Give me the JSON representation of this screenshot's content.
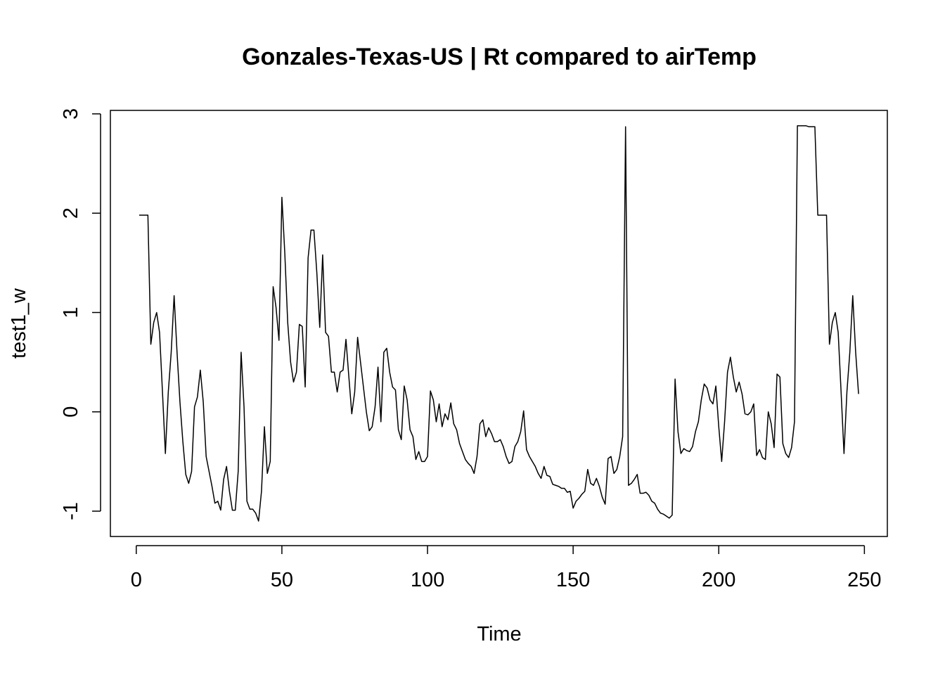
{
  "chart_data": {
    "type": "line",
    "title": "Gonzales-Texas-US | Rt compared to airTemp",
    "x_label": "Time",
    "y_label": "test1_w",
    "xlim": [
      -8.88,
      257.88
    ],
    "ylim": [
      -1.255,
      3.035
    ],
    "xticks": [
      0,
      50,
      100,
      150,
      200,
      250
    ],
    "yticks": [
      -1,
      0,
      1,
      2,
      3
    ],
    "series": [
      {
        "name": "test1_w",
        "color": "#000000",
        "x": [
          1,
          2,
          3,
          4,
          5,
          6,
          7,
          8,
          9,
          10,
          11,
          12,
          13,
          14,
          15,
          16,
          17,
          18,
          19,
          20,
          21,
          22,
          23,
          24,
          25,
          26,
          27,
          28,
          29,
          30,
          31,
          32,
          33,
          34,
          35,
          36,
          37,
          38,
          39,
          40,
          41,
          42,
          43,
          44,
          45,
          46,
          47,
          48,
          49,
          50,
          51,
          52,
          53,
          54,
          55,
          56,
          57,
          58,
          59,
          60,
          61,
          62,
          63,
          64,
          65,
          66,
          67,
          68,
          69,
          70,
          71,
          72,
          73,
          74,
          75,
          76,
          77,
          78,
          79,
          80,
          81,
          82,
          83,
          84,
          85,
          86,
          87,
          88,
          89,
          90,
          91,
          92,
          93,
          94,
          95,
          96,
          97,
          98,
          99,
          100,
          101,
          102,
          103,
          104,
          105,
          106,
          107,
          108,
          109,
          110,
          111,
          112,
          113,
          114,
          115,
          116,
          117,
          118,
          119,
          120,
          121,
          122,
          123,
          124,
          125,
          126,
          127,
          128,
          129,
          130,
          131,
          132,
          133,
          134,
          135,
          136,
          137,
          138,
          139,
          140,
          141,
          142,
          143,
          144,
          145,
          146,
          147,
          148,
          149,
          150,
          151,
          152,
          153,
          154,
          155,
          156,
          157,
          158,
          159,
          160,
          161,
          162,
          163,
          164,
          165,
          166,
          167,
          168,
          169,
          170,
          171,
          172,
          173,
          174,
          175,
          176,
          177,
          178,
          179,
          180,
          181,
          182,
          183,
          184,
          185,
          186,
          187,
          188,
          189,
          190,
          191,
          192,
          193,
          194,
          195,
          196,
          197,
          198,
          199,
          200,
          201,
          202,
          203,
          204,
          205,
          206,
          207,
          208,
          209,
          210,
          211,
          212,
          213,
          214,
          215,
          216,
          217,
          218,
          219,
          220,
          221,
          222,
          223,
          224,
          225,
          226,
          227,
          228,
          229,
          230,
          231,
          232,
          233,
          234,
          235,
          236,
          237,
          238,
          239,
          240,
          241,
          242,
          243,
          244,
          245,
          246,
          247,
          248
        ],
        "values": [
          1.98,
          1.98,
          1.98,
          1.98,
          0.68,
          0.9,
          1.0,
          0.8,
          0.2,
          -0.42,
          0.2,
          0.6,
          1.17,
          0.6,
          0.1,
          -0.3,
          -0.63,
          -0.72,
          -0.6,
          0.05,
          0.15,
          0.42,
          0.1,
          -0.45,
          -0.6,
          -0.75,
          -0.92,
          -0.9,
          -0.99,
          -0.68,
          -0.55,
          -0.8,
          -0.99,
          -0.99,
          -0.6,
          0.6,
          0.05,
          -0.9,
          -0.98,
          -0.98,
          -1.02,
          -1.1,
          -0.8,
          -0.15,
          -0.62,
          -0.5,
          1.26,
          1.05,
          0.72,
          2.16,
          1.6,
          0.9,
          0.5,
          0.3,
          0.4,
          0.88,
          0.86,
          0.25,
          1.55,
          1.83,
          1.83,
          1.4,
          0.85,
          1.58,
          0.8,
          0.76,
          0.4,
          0.4,
          0.2,
          0.4,
          0.42,
          0.73,
          0.35,
          -0.02,
          0.2,
          0.75,
          0.5,
          0.25,
          0.0,
          -0.19,
          -0.15,
          0.05,
          0.45,
          -0.1,
          0.6,
          0.64,
          0.4,
          0.25,
          0.22,
          -0.18,
          -0.28,
          0.26,
          0.12,
          -0.18,
          -0.25,
          -0.48,
          -0.4,
          -0.5,
          -0.5,
          -0.45,
          0.21,
          0.12,
          -0.1,
          0.08,
          -0.15,
          -0.02,
          -0.08,
          0.09,
          -0.12,
          -0.18,
          -0.32,
          -0.4,
          -0.48,
          -0.52,
          -0.55,
          -0.62,
          -0.45,
          -0.12,
          -0.08,
          -0.25,
          -0.16,
          -0.22,
          -0.3,
          -0.3,
          -0.28,
          -0.35,
          -0.45,
          -0.52,
          -0.5,
          -0.35,
          -0.3,
          -0.2,
          0.01,
          -0.38,
          -0.45,
          -0.5,
          -0.55,
          -0.62,
          -0.67,
          -0.55,
          -0.64,
          -0.65,
          -0.73,
          -0.74,
          -0.75,
          -0.77,
          -0.77,
          -0.81,
          -0.8,
          -0.97,
          -0.9,
          -0.87,
          -0.83,
          -0.8,
          -0.58,
          -0.72,
          -0.74,
          -0.67,
          -0.75,
          -0.86,
          -0.93,
          -0.47,
          -0.45,
          -0.62,
          -0.58,
          -0.45,
          -0.25,
          2.87,
          -0.74,
          -0.72,
          -0.68,
          -0.63,
          -0.82,
          -0.82,
          -0.81,
          -0.84,
          -0.9,
          -0.92,
          -0.98,
          -1.02,
          -1.03,
          -1.05,
          -1.07,
          -1.04,
          0.33,
          -0.2,
          -0.42,
          -0.37,
          -0.39,
          -0.4,
          -0.35,
          -0.2,
          -0.1,
          0.12,
          0.28,
          0.24,
          0.12,
          0.08,
          0.26,
          -0.15,
          -0.5,
          -0.1,
          0.4,
          0.55,
          0.35,
          0.2,
          0.3,
          0.18,
          -0.02,
          -0.03,
          0.0,
          0.08,
          -0.44,
          -0.38,
          -0.46,
          -0.48,
          0.0,
          -0.12,
          -0.36,
          0.38,
          0.35,
          -0.32,
          -0.42,
          -0.46,
          -0.36,
          -0.1,
          2.88,
          2.88,
          2.88,
          2.88,
          2.87,
          2.87,
          2.87,
          1.98,
          1.98,
          1.98,
          1.98,
          0.68,
          0.9,
          1.0,
          0.8,
          0.2,
          -0.42,
          0.2,
          0.6,
          1.17,
          0.6,
          0.18
        ]
      }
    ]
  }
}
